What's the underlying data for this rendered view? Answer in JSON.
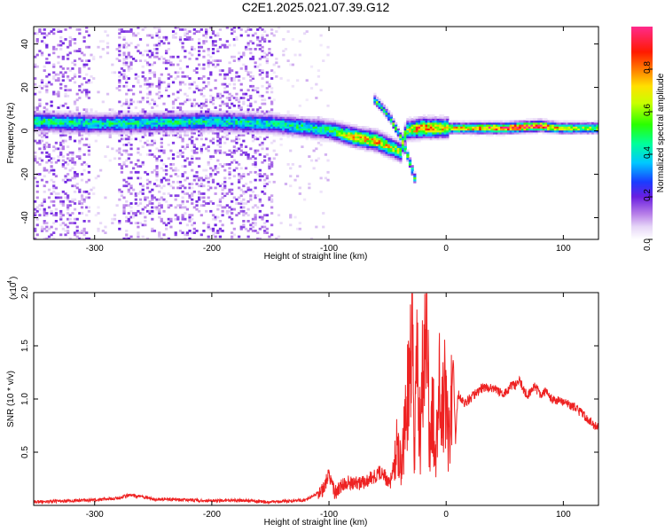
{
  "title": "C2E1.2025.021.07.39.G12",
  "chart_data": [
    {
      "type": "heatmap",
      "xlabel": "Height of straight line (km)",
      "ylabel": "Frequency (Hz)",
      "xlim": [
        -352,
        130
      ],
      "ylim": [
        -50,
        48
      ],
      "xticks": [
        -300,
        -200,
        -100,
        0,
        100
      ],
      "yticks": [
        -40,
        -20,
        0,
        20,
        40
      ],
      "colorbar": {
        "label": "Normalized spectral amplitude",
        "range": [
          0,
          1
        ],
        "ticks": [
          "0.0",
          "0.2",
          "0.4",
          "0.6",
          "0.8"
        ],
        "tick_values": [
          0.0,
          0.2,
          0.4,
          0.6,
          0.8
        ]
      },
      "main_band": {
        "description_points_x": [
          -352,
          -300,
          -200,
          -150,
          -100,
          -80,
          -60,
          -40,
          -35,
          -20,
          0,
          50,
          80,
          95,
          130
        ],
        "frequency_hz": [
          4,
          3,
          4,
          3,
          0,
          -3,
          -5,
          -10,
          0,
          1,
          1,
          1,
          2,
          1,
          1
        ],
        "peak_amplitude": [
          0.5,
          0.45,
          0.45,
          0.45,
          0.5,
          0.75,
          0.8,
          0.6,
          0.6,
          0.9,
          0.7,
          0.95,
          1.0,
          0.7,
          0.6
        ]
      },
      "branch": {
        "x": [
          -62,
          -55,
          -48,
          -40,
          -35,
          -28
        ],
        "frequency_hz": [
          14,
          10,
          5,
          -3,
          -10,
          -22
        ]
      },
      "noise_regions_x": [
        [
          -352,
          -305
        ],
        [
          -280,
          -150
        ]
      ]
    },
    {
      "type": "line",
      "xlabel": "Height of straight line (km)",
      "ylabel": "SNR (10 * v/v)",
      "y_exponent_label": "(x10",
      "y_exponent": "4",
      "xlim": [
        -352,
        130
      ],
      "ylim": [
        0,
        2.0
      ],
      "xticks": [
        -300,
        -200,
        -100,
        0,
        100
      ],
      "yticks": [
        0.5,
        1.0,
        1.5,
        2.0
      ],
      "ytick_labels": [
        "0.5",
        "1.0",
        "1.5",
        "2.0"
      ],
      "color": "#ee2222",
      "series": [
        {
          "x": [
            -352,
            -330,
            -300,
            -280,
            -270,
            -250,
            -220,
            -200,
            -180,
            -150,
            -120,
            -105,
            -100,
            -95,
            -85,
            -75,
            -65,
            -55,
            -48,
            -42,
            -38,
            -34,
            -31,
            -29,
            -27,
            -25,
            -22,
            -19,
            -17,
            -14,
            -12,
            -9,
            -6,
            -4,
            -2,
            0,
            3,
            6,
            8,
            10,
            15,
            20,
            30,
            40,
            50,
            55,
            60,
            63,
            66,
            70,
            75,
            80,
            85,
            90,
            100,
            110,
            120,
            130
          ],
          "y": [
            0.03,
            0.04,
            0.05,
            0.07,
            0.1,
            0.06,
            0.05,
            0.04,
            0.05,
            0.03,
            0.05,
            0.15,
            0.3,
            0.12,
            0.22,
            0.2,
            0.25,
            0.32,
            0.2,
            0.55,
            0.35,
            0.9,
            1.2,
            1.98,
            0.45,
            1.35,
            0.6,
            1.5,
            1.98,
            0.5,
            1.05,
            0.4,
            1.2,
            0.7,
            1.1,
            0.9,
            0.55,
            1.4,
            0.6,
            1.05,
            0.95,
            1.0,
            1.1,
            1.1,
            1.05,
            1.12,
            1.13,
            1.18,
            1.08,
            1.03,
            1.12,
            1.05,
            1.07,
            1.0,
            0.98,
            0.92,
            0.82,
            0.72
          ]
        }
      ]
    }
  ]
}
